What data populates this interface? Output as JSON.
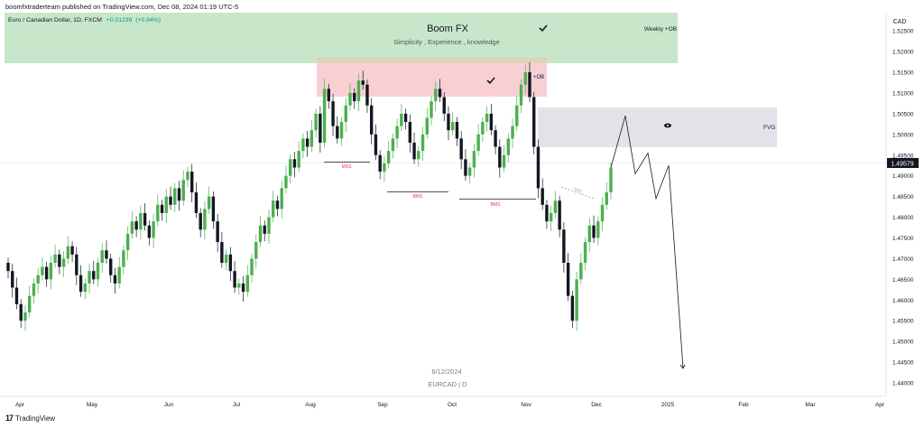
{
  "header": {
    "credit": "boomfxtraderteam published on TradingView.com, Dec 08, 2024 01:19 UTC-5",
    "symbol": "Euro / Canadian Dollar, 1D, FXCM",
    "change": "+0.01239",
    "change_pct": "(+0.84%)"
  },
  "brand": {
    "logo": "17",
    "name": "TradingView"
  },
  "colors": {
    "up": "#4caf50",
    "down": "#131722",
    "zone_green": "#c8e6c9",
    "zone_red": "#f8d0d4",
    "zone_gray": "#e1e3e8",
    "label_red": "#f23645",
    "price_tag": "#131722"
  },
  "annotations": {
    "title": "Boom FX",
    "subtitle": "Simplicity , Experience , knowledge",
    "weekly_ob": "Weekly +OB",
    "ob": "+OB",
    "fvg": "FVG",
    "mss": "MSS",
    "bms1": "BMS",
    "bms2": "BMS",
    "sss": "SSS",
    "date_note": "6/12/2024",
    "pair_note": "EURCAD | D",
    "check_icon": "check-icon",
    "eye_icon": "eye-icon"
  },
  "chart_data": {
    "type": "candlestick",
    "currency": "CAD",
    "last_price": "1.49579",
    "ylim": [
      1.44,
      1.527
    ],
    "y_ticks": [
      "1.52500",
      "1.52000",
      "1.51500",
      "1.51000",
      "1.50500",
      "1.50000",
      "1.49500",
      "1.49000",
      "1.48500",
      "1.48000",
      "1.47500",
      "1.47000",
      "1.46500",
      "1.46000",
      "1.45500",
      "1.45000",
      "1.44500",
      "1.44000"
    ],
    "x_ticks": [
      "Apr",
      "May",
      "Jun",
      "Jul",
      "Aug",
      "Sep",
      "Oct",
      "Nov",
      "Dec",
      "2025",
      "Feb",
      "Mar",
      "Apr"
    ],
    "x_start": "2024-04-01",
    "candles_close": [
      1.467,
      1.463,
      1.459,
      1.455,
      1.457,
      1.461,
      1.464,
      1.466,
      1.468,
      1.465,
      1.469,
      1.471,
      1.468,
      1.47,
      1.473,
      1.471,
      1.466,
      1.462,
      1.464,
      1.467,
      1.465,
      1.469,
      1.472,
      1.47,
      1.466,
      1.464,
      1.468,
      1.472,
      1.476,
      1.479,
      1.477,
      1.481,
      1.478,
      1.475,
      1.479,
      1.483,
      1.481,
      1.485,
      1.483,
      1.487,
      1.484,
      1.489,
      1.491,
      1.486,
      1.481,
      1.477,
      1.482,
      1.485,
      1.479,
      1.474,
      1.469,
      1.471,
      1.467,
      1.463,
      1.464,
      1.462,
      1.466,
      1.47,
      1.474,
      1.478,
      1.476,
      1.48,
      1.484,
      1.482,
      1.487,
      1.49,
      1.494,
      1.492,
      1.496,
      1.499,
      1.497,
      1.501,
      1.505,
      1.498,
      1.511,
      1.508,
      1.502,
      1.499,
      1.503,
      1.507,
      1.51,
      1.508,
      1.513,
      1.512,
      1.507,
      1.5,
      1.495,
      1.491,
      1.493,
      1.496,
      1.499,
      1.502,
      1.505,
      1.503,
      1.498,
      1.494,
      1.496,
      1.5,
      1.504,
      1.508,
      1.511,
      1.509,
      1.505,
      1.501,
      1.503,
      1.499,
      1.494,
      1.49,
      1.492,
      1.496,
      1.5,
      1.503,
      1.505,
      1.501,
      1.497,
      1.492,
      1.495,
      1.499,
      1.502,
      1.507,
      1.512,
      1.515,
      1.509,
      1.497,
      1.487,
      1.483,
      1.479,
      1.481,
      1.484,
      1.477,
      1.469,
      1.461,
      1.455,
      1.465,
      1.469,
      1.474,
      1.478,
      1.475,
      1.479,
      1.483,
      1.486,
      1.492
    ],
    "projection": [
      [
        1.492,
        1.5045
      ],
      [
        1.5045,
        1.4905
      ],
      [
        1.4905,
        1.4955
      ],
      [
        1.4955,
        1.4845
      ],
      [
        1.4845,
        1.4925
      ],
      [
        1.4925,
        1.4435
      ]
    ]
  }
}
